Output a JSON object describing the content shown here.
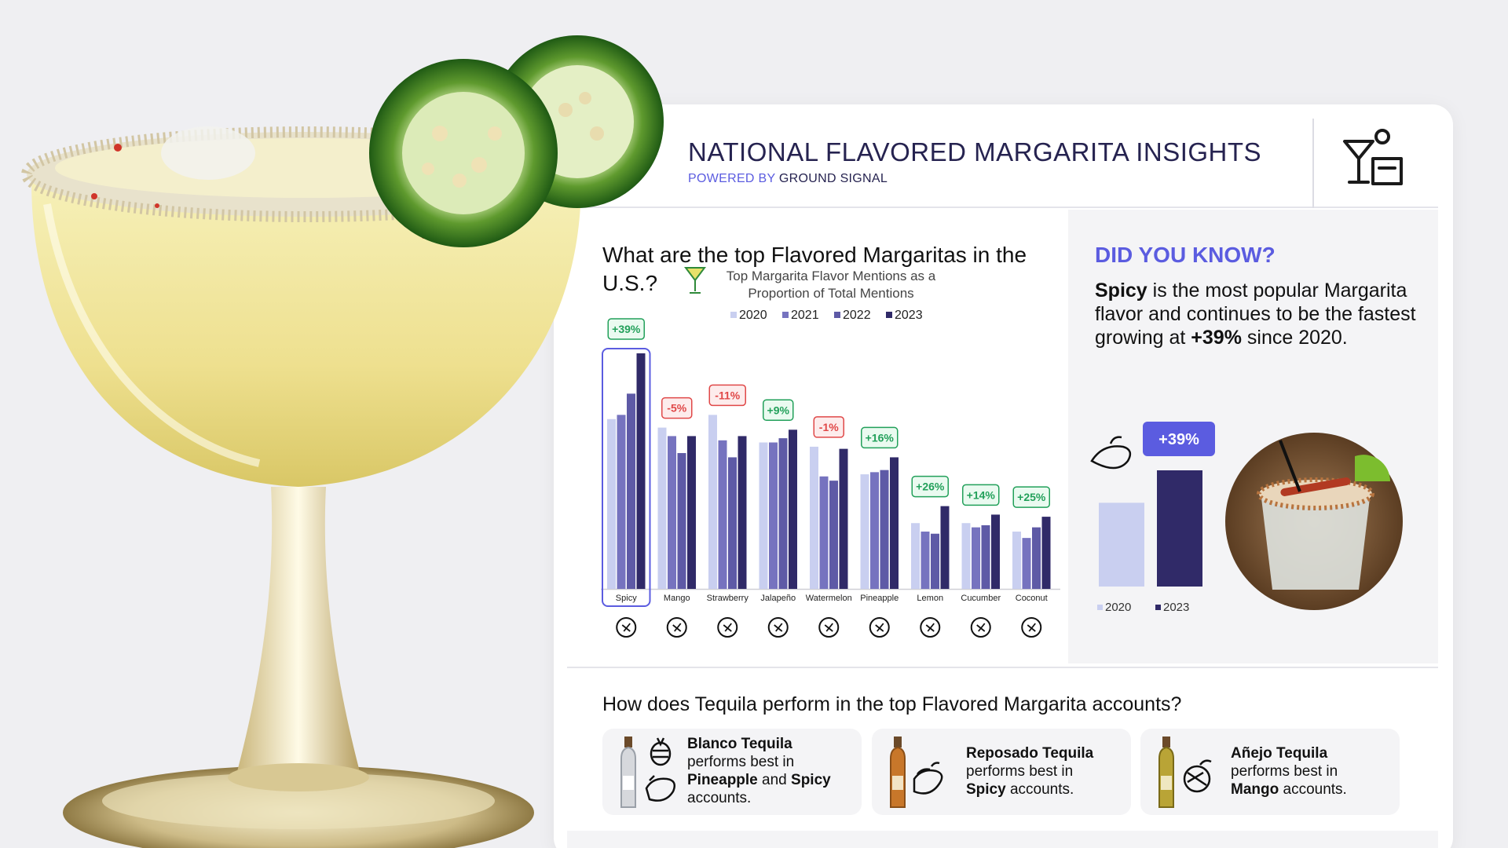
{
  "header": {
    "title": "NATIONAL FLAVORED MARGARITA INSIGHTS",
    "powered_by_prefix": "POWERED BY",
    "powered_by_brand": "GROUND SIGNAL",
    "icon": "cocktail-icon"
  },
  "question_top": "What are the top Flavored Margaritas in the U.S.?",
  "chart_data": {
    "type": "bar",
    "title": "Top Margarita Flavor Mentions as a Proportion of Total Mentions",
    "categories": [
      "Spicy",
      "Mango",
      "Strawberry",
      "Jalapeño",
      "Watermelon",
      "Pineapple",
      "Lemon",
      "Cucumber",
      "Coconut"
    ],
    "series": [
      {
        "name": "2020",
        "color": "#c9cff0",
        "values": [
          8.0,
          7.6,
          8.2,
          6.9,
          6.7,
          5.4,
          3.1,
          3.1,
          2.7
        ]
      },
      {
        "name": "2021",
        "color": "#7673bf",
        "values": [
          8.2,
          7.2,
          7.0,
          6.9,
          5.3,
          5.5,
          2.7,
          2.9,
          2.4
        ]
      },
      {
        "name": "2022",
        "color": "#5e5aa6",
        "values": [
          9.2,
          6.4,
          6.2,
          7.1,
          5.1,
          5.6,
          2.6,
          3.0,
          2.9
        ]
      },
      {
        "name": "2023",
        "color": "#302a68",
        "values": [
          11.1,
          7.2,
          7.2,
          7.5,
          6.6,
          6.2,
          3.9,
          3.5,
          3.4
        ]
      }
    ],
    "changes": [
      "+39%",
      "-5%",
      "-11%",
      "+9%",
      "-1%",
      "+16%",
      "+26%",
      "+14%",
      "+25%"
    ],
    "highlight": "Spicy",
    "legend_position": "top",
    "grid": false,
    "icons": [
      "chili-pepper-icon",
      "mango-icon",
      "strawberry-icon",
      "jalapeno-icon",
      "watermelon-icon",
      "pineapple-icon",
      "lemon-icon",
      "cucumber-icon",
      "coconut-icon"
    ]
  },
  "did_you_know": {
    "title": "DID YOU KNOW?",
    "bold_word": "Spicy",
    "text_part1": " is the most popular Margarita flavor and continues to be the fastest growing at ",
    "bold_pct": "+39%",
    "text_part2": " since 2020.",
    "mini_chart": {
      "type": "bar",
      "categories": [
        "2020",
        "2023"
      ],
      "values": [
        8.0,
        11.1
      ],
      "colors": [
        "#c9cff0",
        "#302a68"
      ],
      "change_label": "+39%",
      "change_color": "#5b5ce0"
    }
  },
  "question_bottom": "How does Tequila perform in the top Flavored Margarita accounts?",
  "tequila_cards": [
    {
      "name": "Blanco Tequila",
      "line1": "performs best in",
      "flavor1": "Pineapple",
      "and": "and",
      "flavor2": "Spicy",
      "end": "accounts."
    },
    {
      "name": "Reposado Tequila",
      "line1": "performs best in",
      "flavor1": "Spicy",
      "end": "accounts."
    },
    {
      "name": "Añejo Tequila",
      "line1": "performs best in",
      "flavor1": "Mango",
      "end": "accounts."
    }
  ],
  "colors": {
    "accent": "#5b5ce0",
    "navy": "#262350",
    "positive": "#22a05a",
    "negative": "#e04848",
    "panel": "#f4f4f6"
  }
}
